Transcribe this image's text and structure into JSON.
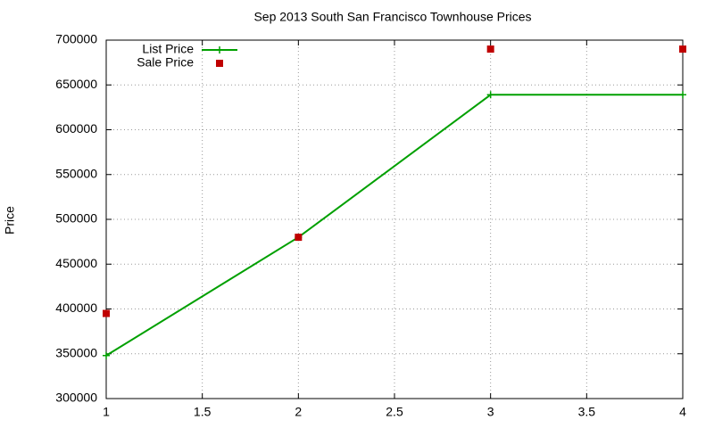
{
  "chart_data": {
    "type": "line",
    "title": "Sep 2013 South San Francisco Townhouse Prices",
    "y_label": "Price",
    "x": [
      1,
      2,
      3,
      4
    ],
    "series": [
      {
        "name": "List Price",
        "color": "#00a000",
        "line": true,
        "marker": "plus",
        "values": [
          348000,
          480000,
          639000,
          639000
        ]
      },
      {
        "name": "Sale Price",
        "color": "#c00000",
        "line": false,
        "marker": "square",
        "values": [
          395000,
          480000,
          690000,
          690000
        ]
      }
    ],
    "xlim": [
      1,
      4
    ],
    "xticks": [
      1,
      1.5,
      2,
      2.5,
      3,
      3.5,
      4
    ],
    "ylim": [
      300000,
      700000
    ],
    "yticks": [
      300000,
      350000,
      400000,
      450000,
      500000,
      550000,
      600000,
      650000,
      700000
    ],
    "grid": true,
    "legend": "top-left"
  }
}
